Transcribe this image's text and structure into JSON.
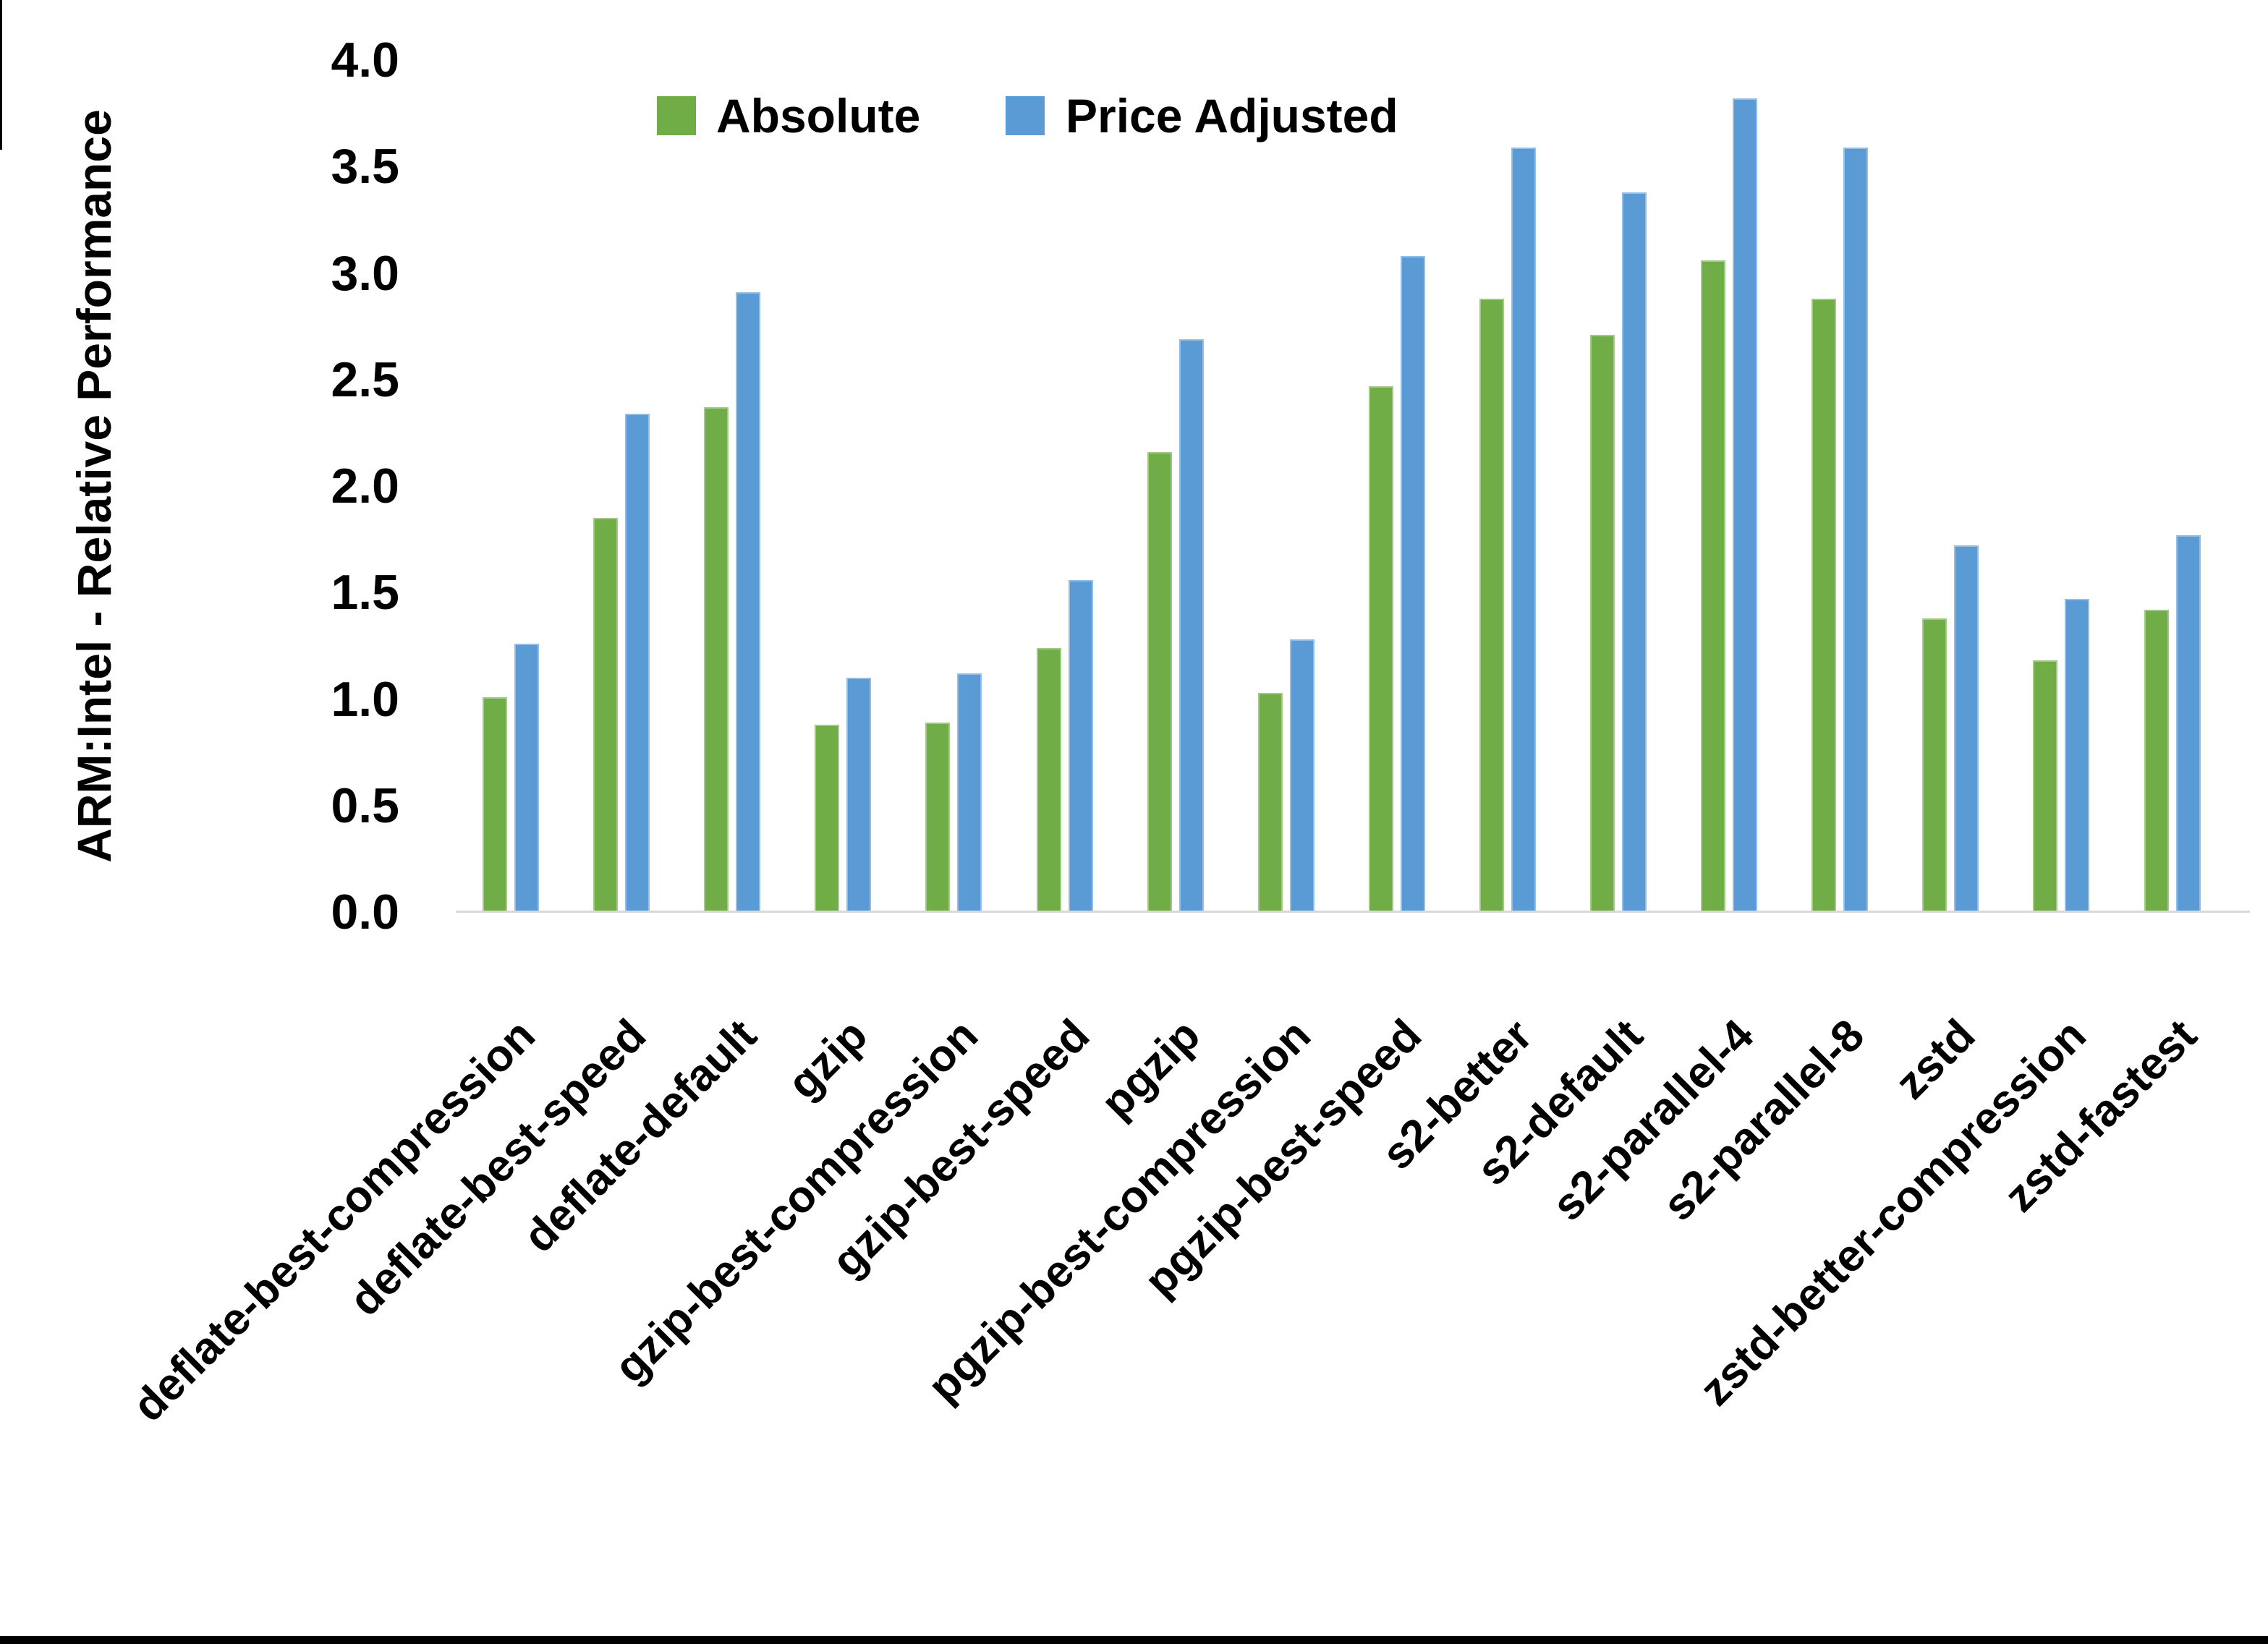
{
  "chart_data": {
    "type": "bar",
    "title": "",
    "xlabel": "",
    "ylabel": "ARM:Intel - Relative Performance",
    "ylim": [
      0.0,
      4.0
    ],
    "ytick_step": 0.5,
    "yticks": [
      "0.0",
      "0.5",
      "1.0",
      "1.5",
      "2.0",
      "2.5",
      "3.0",
      "3.5",
      "4.0"
    ],
    "grid": false,
    "legend_position": "top-center",
    "categories": [
      "deflate-best-compression",
      "deflate-best-speed",
      "deflate-default",
      "gzip",
      "gzip-best-compression",
      "gzip-best-speed",
      "pgzip",
      "pgzip-best-compression",
      "pgzip-best-speed",
      "s2-better",
      "s2-default",
      "s2-parallel-4",
      "s2-parallel-8",
      "zstd",
      "zstd-better-compression",
      "zstd-fastest"
    ],
    "series": [
      {
        "name": "Absolute",
        "color": "#70AD47",
        "values": [
          1.01,
          1.85,
          2.37,
          0.88,
          0.89,
          1.24,
          2.16,
          1.03,
          2.47,
          2.88,
          2.71,
          3.06,
          2.88,
          1.38,
          1.18,
          1.42
        ]
      },
      {
        "name": "Price Adjusted",
        "color": "#5B9BD5",
        "values": [
          1.26,
          2.34,
          2.91,
          1.1,
          1.12,
          1.56,
          2.69,
          1.28,
          3.08,
          3.59,
          3.38,
          3.82,
          3.59,
          1.72,
          1.47,
          1.77
        ]
      }
    ]
  },
  "colors": {
    "axis_line": "#d9d9d9",
    "text": "#000000",
    "border": "#000000"
  }
}
